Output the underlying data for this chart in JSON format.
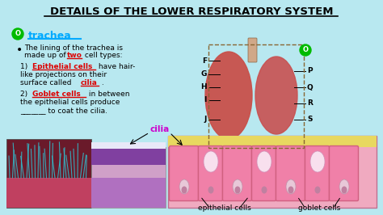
{
  "title": "DETAILS OF THE LOWER RESPIRATORY SYSTEM",
  "bg_color": "#b8e8f0",
  "title_color": "#000000",
  "trachea_label": "trachea",
  "trachea_color": "#00aaff",
  "circle_color": "#00bb00",
  "red_color": "#dd0000",
  "cilia_label": "cilia",
  "epithelial_label": "epithelial cells",
  "goblet_label": "goblet cells",
  "lung_labels_left": [
    "F",
    "G",
    "H",
    "I",
    "J"
  ],
  "lung_labels_right": [
    "O",
    "P",
    "Q",
    "R",
    "S"
  ],
  "text_color": "#111111"
}
